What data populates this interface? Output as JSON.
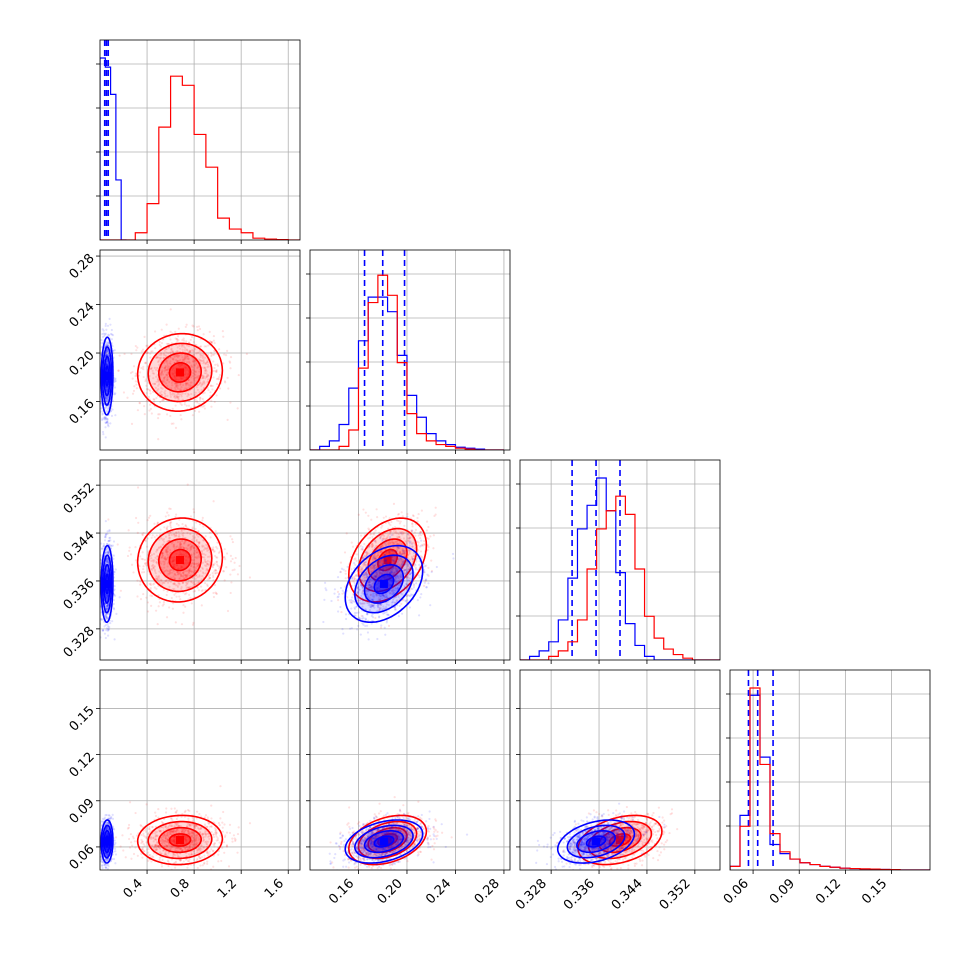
{
  "chart_data": {
    "type": "scatter",
    "kind": "corner-plot",
    "grid": true,
    "legend": "none",
    "colors": {
      "series_a": "#0000ff",
      "series_b": "#ff0000"
    },
    "params": [
      {
        "ticks": [
          0.4,
          0.8,
          1.2,
          1.6
        ],
        "tick_labels": [
          "0.4",
          "0.8",
          "1.2",
          "1.6"
        ],
        "range": [
          0.0,
          1.7
        ]
      },
      {
        "ticks": [
          0.16,
          0.2,
          0.24,
          0.28
        ],
        "tick_labels": [
          "0.16",
          "0.20",
          "0.24",
          "0.28"
        ],
        "range": [
          0.12,
          0.285
        ]
      },
      {
        "ticks": [
          0.328,
          0.336,
          0.344,
          0.352
        ],
        "tick_labels": [
          "0.328",
          "0.336",
          "0.344",
          "0.352"
        ],
        "range": [
          0.3228,
          0.3562
        ]
      },
      {
        "ticks": [
          0.06,
          0.09,
          0.12,
          0.15
        ],
        "tick_labels": [
          "0.06",
          "0.09",
          "0.12",
          "0.15"
        ],
        "range": [
          0.045,
          0.175
        ]
      }
    ],
    "series": [
      {
        "color": "#0000ff",
        "means": [
          0.06,
          0.181,
          0.3355,
          0.0635
        ],
        "sds": [
          0.025,
          0.016,
          0.0032,
          0.007
        ],
        "quantiles": [
          [
            0.04,
            0.055,
            0.07
          ],
          [
            0.165,
            0.18,
            0.198
          ],
          [
            0.3315,
            0.3355,
            0.3395
          ],
          [
            0.057,
            0.063,
            0.073
          ]
        ],
        "hist": [
          {
            "edges": [
              0.0,
              0.045,
              0.09,
              0.135,
              0.18,
              0.225
            ],
            "values": [
              1.0,
              0.95,
              0.8,
              0.33,
              0.0
            ]
          },
          {
            "edges": [
              0.12,
              0.128,
              0.136,
              0.144,
              0.152,
              0.16,
              0.168,
              0.176,
              0.184,
              0.192,
              0.2,
              0.208,
              0.216,
              0.224,
              0.232,
              0.24,
              0.248,
              0.256,
              0.264,
              0.272,
              0.28
            ],
            "values": [
              0.0,
              0.02,
              0.05,
              0.14,
              0.34,
              0.6,
              0.84,
              0.84,
              0.76,
              0.52,
              0.3,
              0.18,
              0.09,
              0.05,
              0.03,
              0.015,
              0.01,
              0.005,
              0.0,
              0.0
            ]
          },
          {
            "edges": [
              0.3228,
              0.3244,
              0.326,
              0.3276,
              0.3292,
              0.3308,
              0.3324,
              0.334,
              0.3356,
              0.3372,
              0.3388,
              0.3404,
              0.342,
              0.3436,
              0.3452,
              0.3468,
              0.3484,
              0.35,
              0.3516,
              0.3532,
              0.3548,
              0.3562
            ],
            "values": [
              0.0,
              0.02,
              0.05,
              0.1,
              0.22,
              0.45,
              0.72,
              0.85,
              1.0,
              0.82,
              0.48,
              0.2,
              0.08,
              0.02,
              0.0,
              0.0,
              0.0,
              0.0,
              0.0,
              0.0,
              0.0
            ]
          },
          {
            "edges": [
              0.045,
              0.0515,
              0.058,
              0.0645,
              0.071,
              0.0775,
              0.084,
              0.0905,
              0.097,
              0.1035,
              0.11,
              0.1165,
              0.123,
              0.1295,
              0.136,
              0.1425,
              0.149,
              0.1555,
              0.162,
              0.1685,
              0.175
            ],
            "values": [
              0.02,
              0.3,
              0.96,
              0.62,
              0.14,
              0.09,
              0.06,
              0.04,
              0.03,
              0.02,
              0.015,
              0.01,
              0.008,
              0.005,
              0.004,
              0.003,
              0.002,
              0.0,
              0.0,
              0.0
            ]
          }
        ]
      },
      {
        "color": "#ff0000",
        "means": [
          0.68,
          0.184,
          0.3395,
          0.0645
        ],
        "sds": [
          0.18,
          0.016,
          0.0035,
          0.008
        ],
        "quantiles": [],
        "hist": [
          {
            "edges": [
              0.0,
              0.1,
              0.2,
              0.3,
              0.4,
              0.5,
              0.6,
              0.7,
              0.8,
              0.9,
              1.0,
              1.1,
              1.2,
              1.3,
              1.4,
              1.5,
              1.6,
              1.7
            ],
            "values": [
              0.0,
              0.0,
              0.0,
              0.04,
              0.2,
              0.62,
              0.9,
              0.85,
              0.58,
              0.4,
              0.12,
              0.06,
              0.04,
              0.01,
              0.005,
              0.002,
              0.0
            ]
          },
          {
            "edges": [
              0.12,
              0.128,
              0.136,
              0.144,
              0.152,
              0.16,
              0.168,
              0.176,
              0.184,
              0.192,
              0.2,
              0.208,
              0.216,
              0.224,
              0.232,
              0.24,
              0.248,
              0.256,
              0.264,
              0.272,
              0.28
            ],
            "values": [
              0.0,
              0.0,
              0.0,
              0.02,
              0.11,
              0.45,
              0.81,
              0.96,
              0.85,
              0.48,
              0.2,
              0.09,
              0.05,
              0.03,
              0.02,
              0.01,
              0.005,
              0.0,
              0.0,
              0.0
            ]
          },
          {
            "edges": [
              0.3228,
              0.3244,
              0.326,
              0.3276,
              0.3292,
              0.3308,
              0.3324,
              0.334,
              0.3356,
              0.3372,
              0.3388,
              0.3404,
              0.342,
              0.3436,
              0.3452,
              0.3468,
              0.3484,
              0.35,
              0.3516,
              0.3532,
              0.3548,
              0.3562
            ],
            "values": [
              0.0,
              0.0,
              0.0,
              0.02,
              0.05,
              0.1,
              0.22,
              0.5,
              0.72,
              0.82,
              0.9,
              0.8,
              0.5,
              0.24,
              0.12,
              0.06,
              0.03,
              0.01,
              0.0,
              0.0,
              0.0
            ]
          },
          {
            "edges": [
              0.045,
              0.0515,
              0.058,
              0.0645,
              0.071,
              0.0775,
              0.084,
              0.0905,
              0.097,
              0.1035,
              0.11,
              0.1165,
              0.123,
              0.1295,
              0.136,
              0.1425,
              0.149,
              0.1555,
              0.162,
              0.1685,
              0.175
            ],
            "values": [
              0.02,
              0.24,
              1.0,
              0.58,
              0.2,
              0.1,
              0.06,
              0.04,
              0.03,
              0.02,
              0.015,
              0.01,
              0.008,
              0.006,
              0.005,
              0.003,
              0.002,
              0.0,
              0.0,
              0.0
            ]
          }
        ]
      }
    ]
  }
}
